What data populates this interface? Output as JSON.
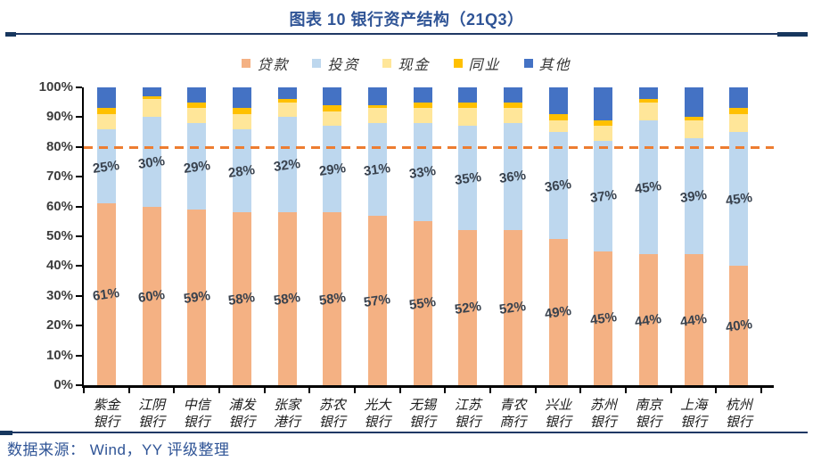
{
  "title": "图表 10 银行资产结构（21Q3）",
  "source": "数据来源： Wind，YY 评级整理",
  "colors": {
    "title_navy": "#2F5496",
    "rule_navy": "#1F3864",
    "reference_line": "#ED7D31",
    "axis": "#000000"
  },
  "chart_data": {
    "type": "bar",
    "stacked": true,
    "grid": false,
    "legend_position": "top",
    "ylim": [
      0,
      100
    ],
    "y_ticks": [
      "0%",
      "10%",
      "20%",
      "30%",
      "40%",
      "50%",
      "60%",
      "70%",
      "80%",
      "90%",
      "100%"
    ],
    "reference_line": {
      "value": 80,
      "style": "dashed",
      "color": "#ED7D31"
    },
    "categories": [
      {
        "name": "紫金银行",
        "lines": [
          "紫金",
          "银行"
        ]
      },
      {
        "name": "江阴银行",
        "lines": [
          "江阴",
          "银行"
        ]
      },
      {
        "name": "中信银行",
        "lines": [
          "中信",
          "银行"
        ]
      },
      {
        "name": "浦发银行",
        "lines": [
          "浦发",
          "银行"
        ]
      },
      {
        "name": "张家港行",
        "lines": [
          "张家",
          "港行"
        ]
      },
      {
        "name": "苏农银行",
        "lines": [
          "苏农",
          "银行"
        ]
      },
      {
        "name": "光大银行",
        "lines": [
          "光大",
          "银行"
        ]
      },
      {
        "name": "无锡银行",
        "lines": [
          "无锡",
          "银行"
        ]
      },
      {
        "name": "江苏银行",
        "lines": [
          "江苏",
          "银行"
        ]
      },
      {
        "name": "青农商行",
        "lines": [
          "青农",
          "商行"
        ]
      },
      {
        "name": "兴业银行",
        "lines": [
          "兴业",
          "银行"
        ]
      },
      {
        "name": "苏州银行",
        "lines": [
          "苏州",
          "银行"
        ]
      },
      {
        "name": "南京银行",
        "lines": [
          "南京",
          "银行"
        ]
      },
      {
        "name": "上海银行",
        "lines": [
          "上海",
          "银行"
        ]
      },
      {
        "name": "杭州银行",
        "lines": [
          "杭州",
          "银行"
        ]
      }
    ],
    "series": [
      {
        "name": "贷款",
        "color": "#F4B183",
        "show_labels": true,
        "values": [
          61,
          60,
          59,
          58,
          58,
          58,
          57,
          55,
          52,
          52,
          49,
          45,
          44,
          44,
          40
        ]
      },
      {
        "name": "投资",
        "color": "#BDD7EE",
        "show_labels": true,
        "values": [
          25,
          30,
          29,
          28,
          32,
          29,
          31,
          33,
          35,
          36,
          36,
          37,
          45,
          39,
          45
        ]
      },
      {
        "name": "现金",
        "color": "#FFE699",
        "show_labels": false,
        "values": [
          5,
          6,
          5,
          5,
          5,
          5,
          5,
          5,
          6,
          5,
          4,
          5,
          6,
          6,
          6
        ]
      },
      {
        "name": "同业",
        "color": "#FFC000",
        "show_labels": false,
        "values": [
          2,
          1,
          2,
          2,
          1,
          2,
          1,
          2,
          2,
          2,
          2,
          2,
          1,
          1,
          2
        ]
      },
      {
        "name": "其他",
        "color": "#4472C4",
        "show_labels": false,
        "values": [
          7,
          3,
          5,
          7,
          4,
          6,
          6,
          5,
          5,
          5,
          9,
          11,
          4,
          10,
          7
        ]
      }
    ]
  }
}
